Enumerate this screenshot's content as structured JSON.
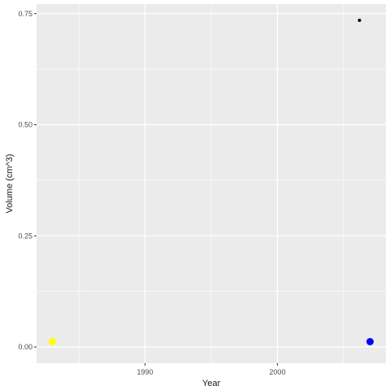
{
  "chart_data": {
    "type": "scatter",
    "title": "",
    "xlabel": "Year",
    "ylabel": "Volume (cm^3)",
    "xlim": [
      1981.8,
      2008.2
    ],
    "ylim": [
      -0.0365,
      0.7715
    ],
    "x_major_ticks": [
      1990,
      2000
    ],
    "x_minor_ticks": [
      1985,
      1995,
      2005
    ],
    "y_major_ticks": [
      0.0,
      0.25,
      0.5,
      0.75
    ],
    "y_minor_ticks": [
      0.125,
      0.375,
      0.625
    ],
    "x_tick_labels": [
      "1990",
      "2000"
    ],
    "y_tick_labels": [
      "0.00",
      "0.25",
      "0.50",
      "0.75"
    ],
    "grid": true,
    "legend": "none",
    "panel_background": "#ebebeb",
    "grid_color": "#ffffff",
    "points": [
      {
        "x": 1983,
        "y": 0.012,
        "color": "#ffff00",
        "size": "large"
      },
      {
        "x": 2007,
        "y": 0.012,
        "color": "#0000ff",
        "size": "large"
      },
      {
        "x": 2006.2,
        "y": 0.735,
        "color": "#000000",
        "size": "small"
      }
    ]
  }
}
